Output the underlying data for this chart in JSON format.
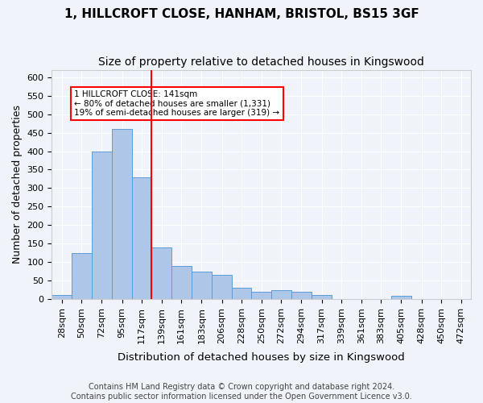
{
  "title1": "1, HILLCROFT CLOSE, HANHAM, BRISTOL, BS15 3GF",
  "title2": "Size of property relative to detached houses in Kingswood",
  "xlabel": "Distribution of detached houses by size in Kingswood",
  "ylabel": "Number of detached properties",
  "bar_edges": [
    28,
    50,
    72,
    95,
    117,
    139,
    161,
    183,
    206,
    228,
    250,
    272,
    294,
    317,
    339,
    361,
    383,
    405,
    428,
    450,
    472
  ],
  "bar_heights": [
    10,
    125,
    400,
    460,
    330,
    140,
    90,
    75,
    65,
    30,
    20,
    25,
    20,
    10,
    0,
    0,
    0,
    8,
    0,
    0,
    0
  ],
  "bar_color": "#aec6e8",
  "bar_edge_color": "#5b9bd5",
  "vline_x": 139,
  "vline_color": "red",
  "annotation_text": "1 HILLCROFT CLOSE: 141sqm\n← 80% of detached houses are smaller (1,331)\n19% of semi-detached houses are larger (319) →",
  "annotation_box_color": "white",
  "annotation_box_edge": "red",
  "ylim": [
    0,
    620
  ],
  "yticks": [
    0,
    50,
    100,
    150,
    200,
    250,
    300,
    350,
    400,
    450,
    500,
    550,
    600
  ],
  "footer1": "Contains HM Land Registry data © Crown copyright and database right 2024.",
  "footer2": "Contains public sector information licensed under the Open Government Licence v3.0.",
  "background_color": "#f0f4fa",
  "grid_color": "white",
  "title_fontsize": 11,
  "subtitle_fontsize": 10,
  "axis_label_fontsize": 9,
  "tick_fontsize": 8,
  "footer_fontsize": 7
}
